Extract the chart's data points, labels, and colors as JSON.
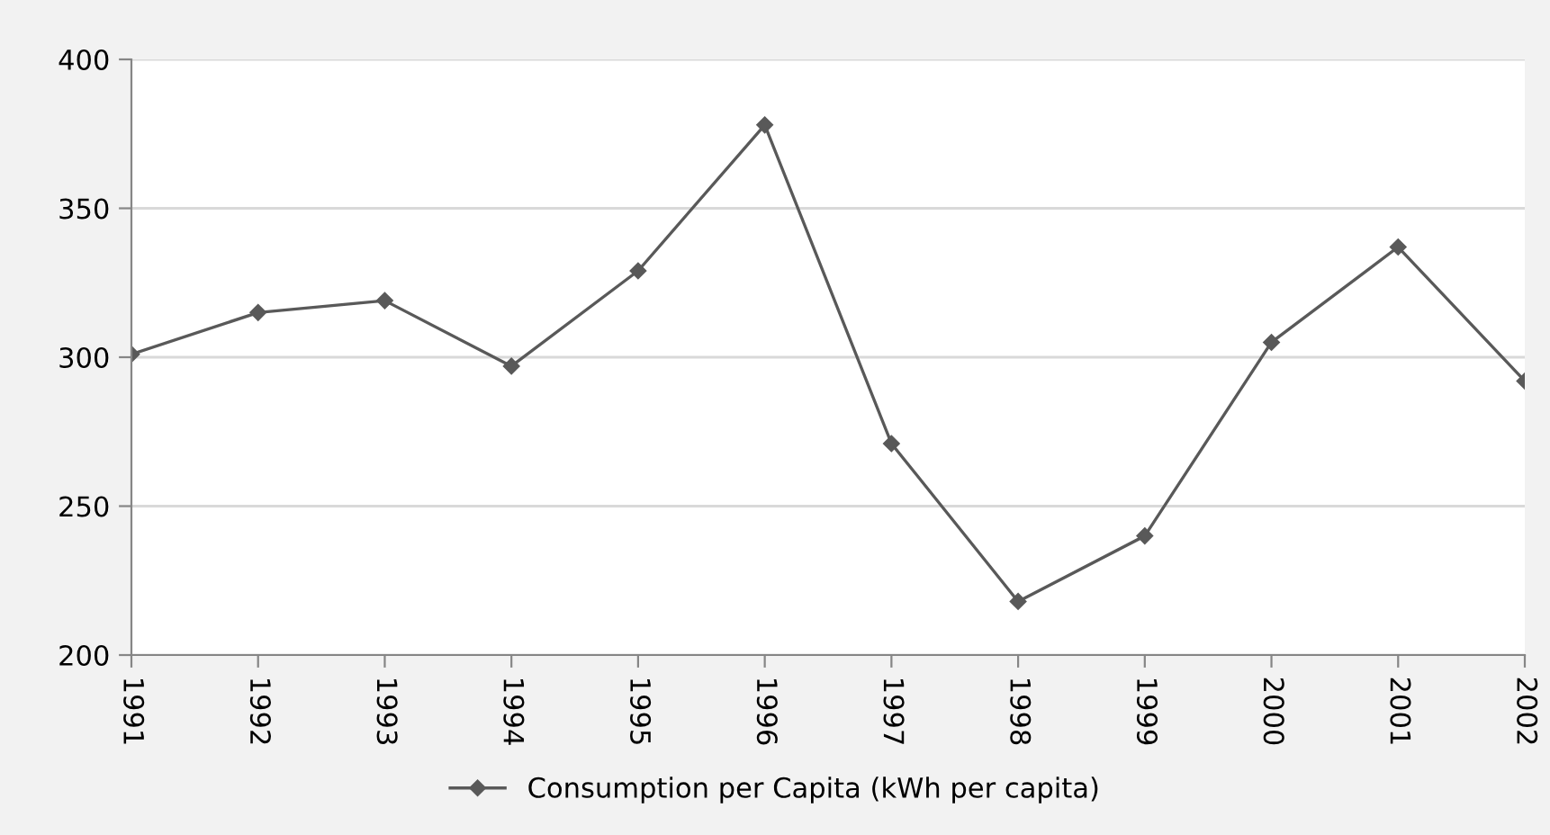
{
  "chart_data": {
    "type": "line",
    "categories": [
      "1991",
      "1992",
      "1993",
      "1994",
      "1995",
      "1996",
      "1997",
      "1998",
      "1999",
      "2000",
      "2001",
      "2002"
    ],
    "series": [
      {
        "name": "Consumption per Capita (kWh per capita)",
        "color": "#595959",
        "values": [
          301,
          315,
          319,
          297,
          329,
          378,
          271,
          218,
          240,
          305,
          337,
          292
        ]
      }
    ],
    "ylim": [
      200,
      400
    ],
    "yticks": [
      200,
      250,
      300,
      350,
      400
    ],
    "grid": "y",
    "legend": "bottom",
    "marker": "diamond",
    "line_style": "solid"
  }
}
